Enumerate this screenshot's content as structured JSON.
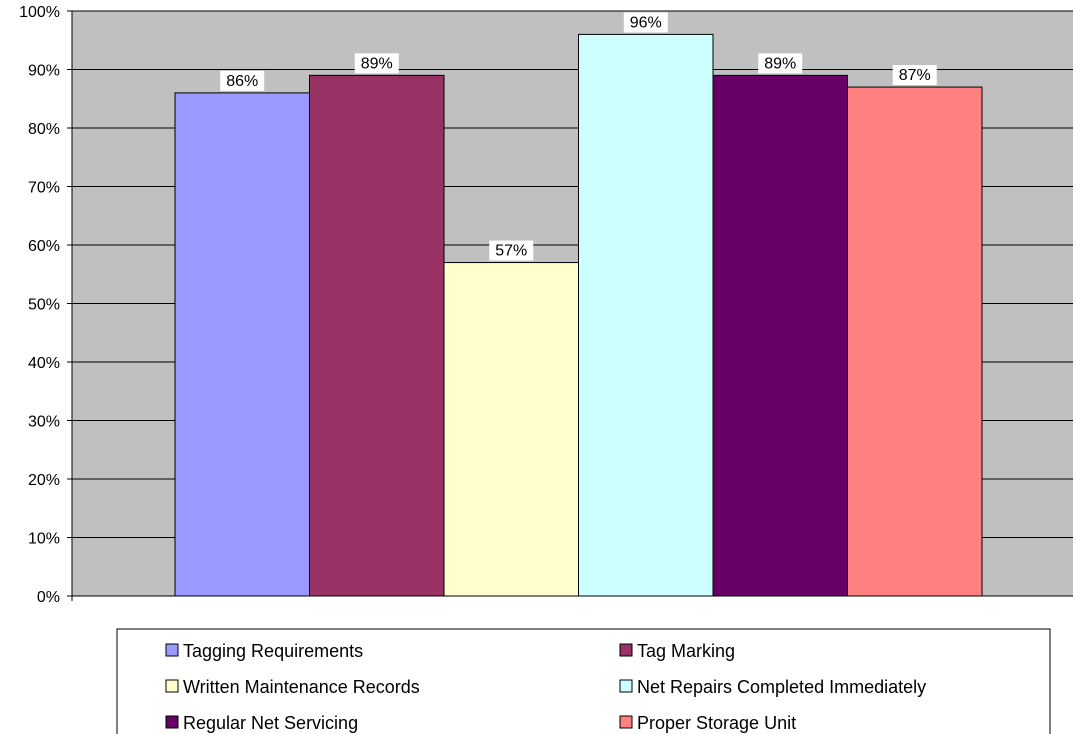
{
  "chart_data": {
    "type": "bar",
    "title": "",
    "xlabel": "",
    "ylabel": "",
    "ylim": [
      0,
      100
    ],
    "ytick_step": 10,
    "y_tick_suffix": "%",
    "grid": true,
    "legend_position": "bottom",
    "plot_background": "#c0c0c0",
    "series": [
      {
        "name": "Tagging Requirements",
        "value": 86,
        "label": "86%",
        "color": "#9999ff"
      },
      {
        "name": "Tag Marking",
        "value": 89,
        "label": "89%",
        "color": "#993366"
      },
      {
        "name": "Written Maintenance Records",
        "value": 57,
        "label": "57%",
        "color": "#ffffcc"
      },
      {
        "name": "Net Repairs Completed Immediately",
        "value": 96,
        "label": "96%",
        "color": "#ccffff"
      },
      {
        "name": "Regular Net Servicing",
        "value": 89,
        "label": "89%",
        "color": "#660066"
      },
      {
        "name": "Proper Storage Unit",
        "value": 87,
        "label": "87%",
        "color": "#ff8080"
      }
    ]
  }
}
